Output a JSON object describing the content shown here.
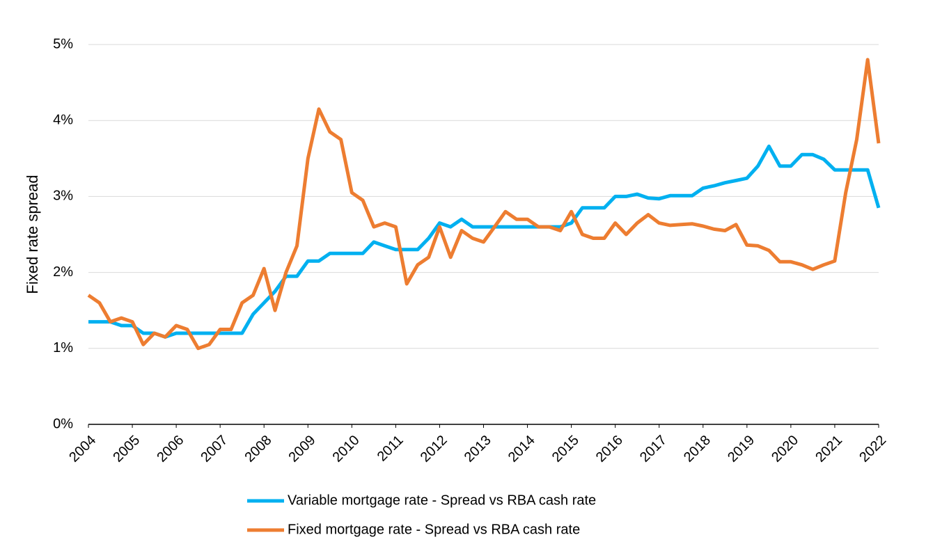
{
  "chart_data": {
    "type": "line",
    "y_label": "Fixed rate spread",
    "x": [
      2004,
      2004.25,
      2004.5,
      2004.75,
      2005,
      2005.25,
      2005.5,
      2005.75,
      2006,
      2006.25,
      2006.5,
      2006.75,
      2007,
      2007.25,
      2007.5,
      2007.75,
      2008,
      2008.25,
      2008.5,
      2008.75,
      2009,
      2009.25,
      2009.5,
      2009.75,
      2010,
      2010.25,
      2010.5,
      2010.75,
      2011,
      2011.25,
      2011.5,
      2011.75,
      2012,
      2012.25,
      2012.5,
      2012.75,
      2013,
      2013.25,
      2013.5,
      2013.75,
      2014,
      2014.25,
      2014.5,
      2014.75,
      2015,
      2015.25,
      2015.5,
      2015.75,
      2016,
      2016.25,
      2016.5,
      2016.75,
      2017,
      2017.25,
      2017.5,
      2017.75,
      2018,
      2018.25,
      2018.5,
      2018.75,
      2019,
      2019.25,
      2019.5,
      2019.75,
      2020,
      2020.25,
      2020.5,
      2020.75,
      2021,
      2021.25,
      2021.5,
      2021.75,
      2022
    ],
    "series": [
      {
        "name": "Variable mortgage rate - Spread vs RBA cash rate",
        "color": "#00b0f0",
        "values": [
          1.35,
          1.35,
          1.35,
          1.3,
          1.3,
          1.2,
          1.2,
          1.15,
          1.2,
          1.2,
          1.2,
          1.2,
          1.2,
          1.2,
          1.2,
          1.45,
          1.6,
          1.75,
          1.95,
          1.95,
          2.15,
          2.15,
          2.25,
          2.25,
          2.25,
          2.25,
          2.4,
          2.35,
          2.3,
          2.3,
          2.3,
          2.45,
          2.65,
          2.6,
          2.7,
          2.6,
          2.6,
          2.6,
          2.6,
          2.6,
          2.6,
          2.6,
          2.6,
          2.6,
          2.65,
          2.85,
          2.85,
          2.85,
          3.0,
          3.0,
          3.03,
          2.98,
          2.97,
          3.01,
          3.01,
          3.01,
          3.11,
          3.14,
          3.18,
          3.21,
          3.24,
          3.4,
          3.66,
          3.4,
          3.4,
          3.55,
          3.55,
          3.49,
          3.35,
          3.35,
          3.35,
          3.35,
          2.85
        ]
      },
      {
        "name": "Fixed mortgage rate - Spread vs RBA cash rate",
        "color": "#ed7d31",
        "values": [
          1.7,
          1.6,
          1.35,
          1.4,
          1.35,
          1.05,
          1.2,
          1.15,
          1.3,
          1.25,
          1.0,
          1.05,
          1.25,
          1.25,
          1.6,
          1.7,
          2.05,
          1.5,
          2.0,
          2.35,
          3.5,
          4.15,
          3.85,
          3.75,
          3.05,
          2.95,
          2.6,
          2.65,
          2.6,
          1.85,
          2.1,
          2.2,
          2.6,
          2.2,
          2.55,
          2.45,
          2.4,
          2.6,
          2.8,
          2.7,
          2.7,
          2.6,
          2.6,
          2.55,
          2.8,
          2.5,
          2.45,
          2.45,
          2.65,
          2.5,
          2.65,
          2.76,
          2.65,
          2.62,
          2.63,
          2.64,
          2.61,
          2.57,
          2.55,
          2.63,
          2.36,
          2.35,
          2.29,
          2.14,
          2.14,
          2.1,
          2.04,
          2.1,
          2.15,
          3.05,
          3.75,
          4.8,
          3.7
        ]
      }
    ],
    "xlim": [
      2004,
      2022
    ],
    "xticks": [
      2004,
      2005,
      2006,
      2007,
      2008,
      2009,
      2010,
      2011,
      2012,
      2013,
      2014,
      2015,
      2016,
      2017,
      2018,
      2019,
      2020,
      2021,
      2022
    ],
    "ylim": [
      0,
      5
    ],
    "yticks": [
      {
        "value": 0,
        "label": "0%"
      },
      {
        "value": 1,
        "label": "1%"
      },
      {
        "value": 2,
        "label": "2%"
      },
      {
        "value": 3,
        "label": "3%"
      },
      {
        "value": 4,
        "label": "4%"
      },
      {
        "value": 5,
        "label": "5%"
      }
    ],
    "grid": true,
    "legend": "bottom"
  }
}
